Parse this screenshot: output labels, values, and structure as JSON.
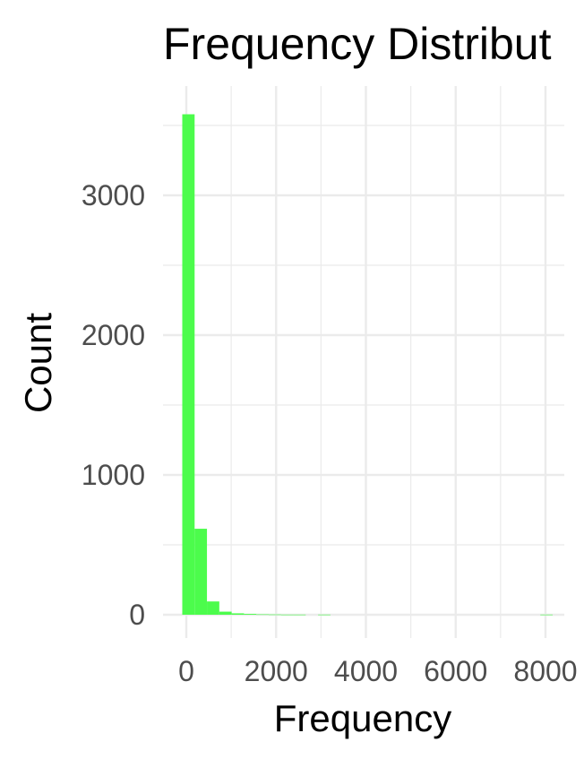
{
  "chart_data": {
    "type": "bar",
    "title": "Frequency Distribut",
    "xlabel": "Frequency",
    "ylabel": "Count",
    "xlim": [
      -200,
      8300
    ],
    "ylim": [
      0,
      3600
    ],
    "x_ticks": [
      0,
      2000,
      4000,
      6000,
      8000
    ],
    "x_tick_labels": [
      "0",
      "2000",
      "4000",
      "6000",
      "8000"
    ],
    "y_ticks": [
      0,
      1000,
      2000,
      3000
    ],
    "y_tick_labels": [
      "0",
      "1000",
      "2000",
      "3000"
    ],
    "x_minor_ticks": [
      1000,
      3000,
      5000,
      7000
    ],
    "y_minor_ticks": [
      500,
      1500,
      2500,
      3500
    ],
    "grid": true,
    "bar_color": "#4cfc4c",
    "bins": [
      {
        "x0": -90,
        "x1": 185,
        "count": 3580
      },
      {
        "x0": 185,
        "x1": 460,
        "count": 615
      },
      {
        "x0": 460,
        "x1": 735,
        "count": 95
      },
      {
        "x0": 735,
        "x1": 1010,
        "count": 22
      },
      {
        "x0": 1010,
        "x1": 1285,
        "count": 10
      },
      {
        "x0": 1285,
        "x1": 1560,
        "count": 6
      },
      {
        "x0": 1560,
        "x1": 1835,
        "count": 3
      },
      {
        "x0": 1835,
        "x1": 2110,
        "count": 2
      },
      {
        "x0": 2110,
        "x1": 2385,
        "count": 1
      },
      {
        "x0": 2385,
        "x1": 2660,
        "count": 1
      },
      {
        "x0": 2660,
        "x1": 2935,
        "count": 0
      },
      {
        "x0": 2935,
        "x1": 3210,
        "count": 1
      },
      {
        "x0": 3210,
        "x1": 3485,
        "count": 0
      },
      {
        "x0": 3485,
        "x1": 3760,
        "count": 0
      },
      {
        "x0": 3760,
        "x1": 4035,
        "count": 0
      },
      {
        "x0": 4035,
        "x1": 4310,
        "count": 0
      },
      {
        "x0": 4310,
        "x1": 4585,
        "count": 0
      },
      {
        "x0": 4585,
        "x1": 4860,
        "count": 0
      },
      {
        "x0": 4860,
        "x1": 5135,
        "count": 0
      },
      {
        "x0": 5135,
        "x1": 5410,
        "count": 0
      },
      {
        "x0": 5410,
        "x1": 5685,
        "count": 0
      },
      {
        "x0": 5685,
        "x1": 5960,
        "count": 0
      },
      {
        "x0": 5960,
        "x1": 6235,
        "count": 0
      },
      {
        "x0": 6235,
        "x1": 6510,
        "count": 0
      },
      {
        "x0": 6510,
        "x1": 6785,
        "count": 0
      },
      {
        "x0": 6785,
        "x1": 7060,
        "count": 0
      },
      {
        "x0": 7060,
        "x1": 7335,
        "count": 0
      },
      {
        "x0": 7335,
        "x1": 7610,
        "count": 0
      },
      {
        "x0": 7610,
        "x1": 7885,
        "count": 0
      },
      {
        "x0": 7885,
        "x1": 8160,
        "count": 1
      }
    ]
  }
}
